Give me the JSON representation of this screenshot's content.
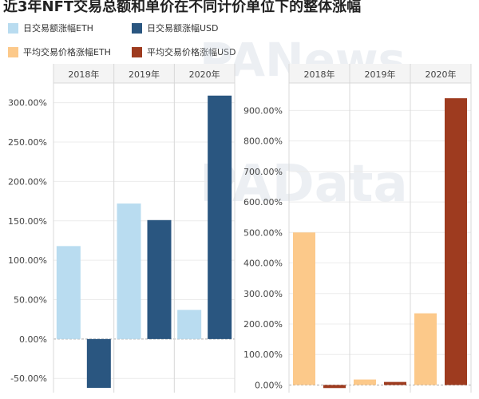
{
  "title": "近3年NFT交易总额和单价在不同计价单位下的整体涨幅",
  "watermarks": [
    "PANews",
    "PAData"
  ],
  "legend": [
    {
      "label": "日交易额涨幅ETH",
      "color": "#b9dcf0"
    },
    {
      "label": "日交易额涨幅USD",
      "color": "#2a5680"
    },
    {
      "label": "平均交易价格涨幅ETH",
      "color": "#fcc98a"
    },
    {
      "label": "平均交易价格涨幅USD",
      "color": "#9e3b1f"
    }
  ],
  "chart_data": [
    {
      "type": "bar",
      "categories": [
        "2018年",
        "2019年",
        "2020年"
      ],
      "series": [
        {
          "name": "日交易额涨幅ETH",
          "color": "#b9dcf0",
          "values": [
            118,
            172,
            37
          ]
        },
        {
          "name": "日交易额涨幅USD",
          "color": "#2a5680",
          "values": [
            -62,
            151,
            309
          ]
        }
      ],
      "yticks": [
        -50,
        0,
        50,
        100,
        150,
        200,
        250,
        300
      ],
      "tick_labels": [
        "-50.00%",
        "0.00%",
        "50.00%",
        "100.00%",
        "150.00%",
        "200.00%",
        "250.00%",
        "300.00%"
      ],
      "ylim": [
        -68,
        325
      ],
      "grid": true
    },
    {
      "type": "bar",
      "categories": [
        "2018年",
        "2019年",
        "2020年"
      ],
      "series": [
        {
          "name": "平均交易价格涨幅ETH",
          "color": "#fcc98a",
          "values": [
            500,
            18,
            235
          ]
        },
        {
          "name": "平均交易价格涨幅USD",
          "color": "#9e3b1f",
          "values": [
            -10,
            10,
            940
          ]
        }
      ],
      "yticks": [
        0,
        100,
        200,
        300,
        400,
        500,
        600,
        700,
        800,
        900
      ],
      "tick_labels": [
        "0.00%",
        "100.00%",
        "200.00%",
        "300.00%",
        "400.00%",
        "500.00%",
        "600.00%",
        "700.00%",
        "800.00%",
        "900.00%"
      ],
      "ylim": [
        -25,
        990
      ],
      "grid": true
    }
  ]
}
